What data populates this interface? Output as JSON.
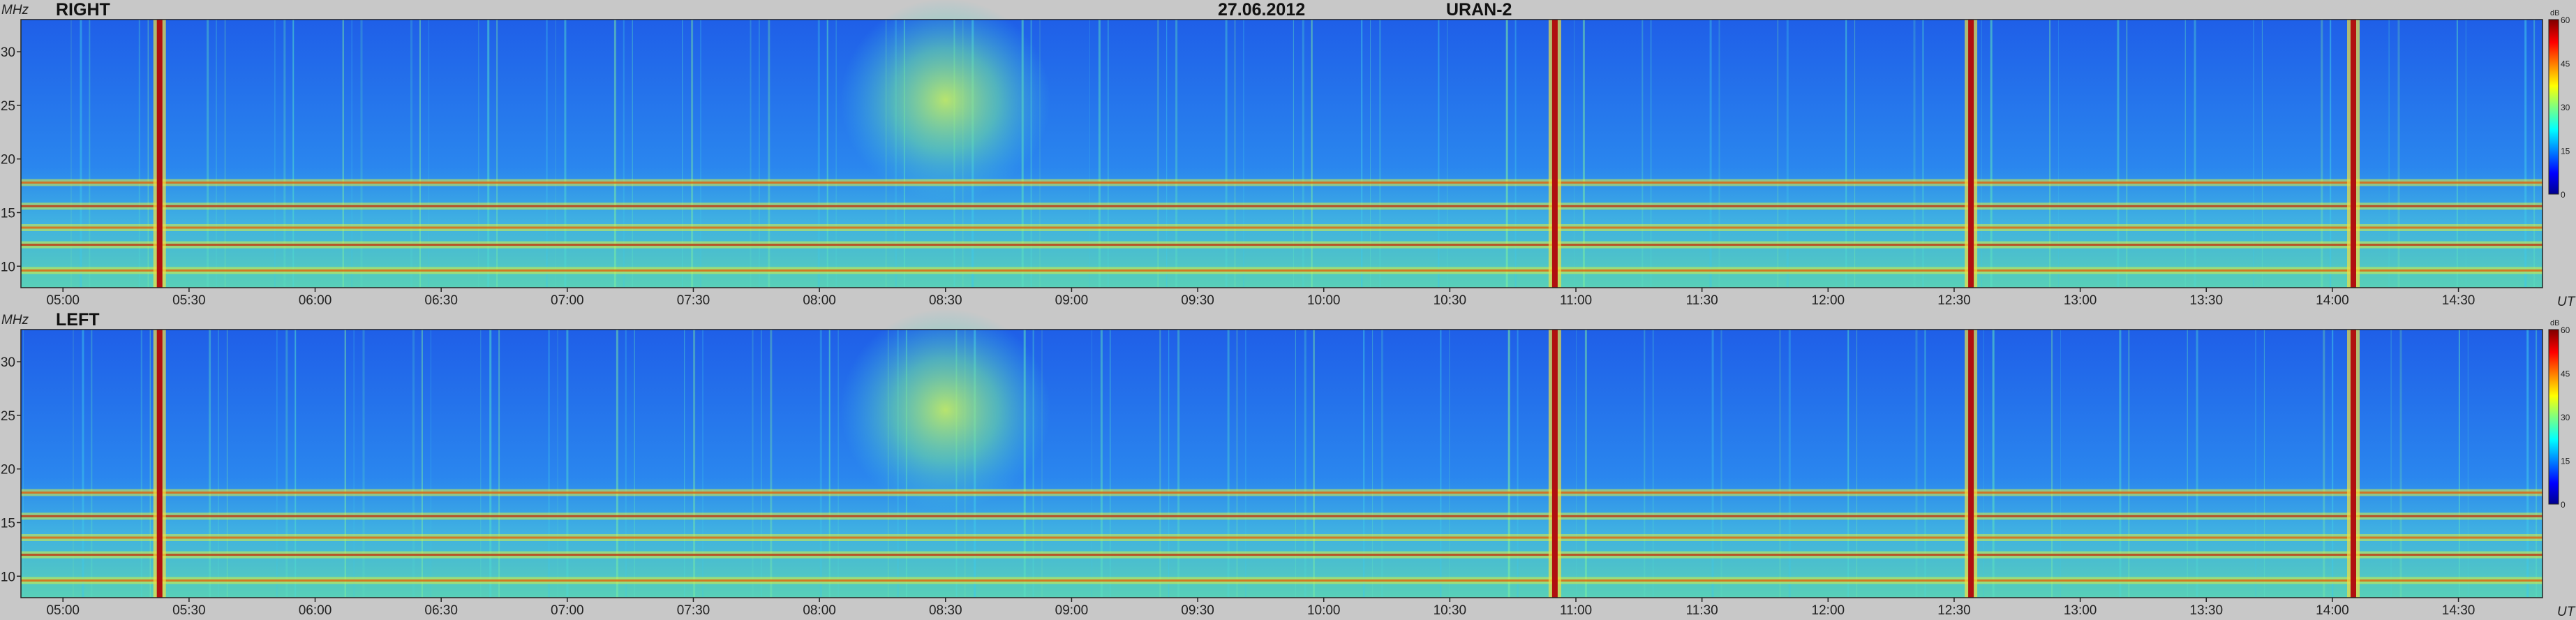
{
  "header": {
    "date": "27.06.2012",
    "instrument": "URAN-2"
  },
  "axes": {
    "y_label": "MHz",
    "x_label": "UT",
    "y_ticks": [
      "10",
      "15",
      "20",
      "25",
      "30"
    ],
    "x_ticks": [
      "05:00",
      "05:30",
      "06:00",
      "06:30",
      "07:00",
      "07:30",
      "08:00",
      "08:30",
      "09:00",
      "09:30",
      "10:00",
      "10:30",
      "11:00",
      "11:30",
      "12:00",
      "12:30",
      "13:00",
      "13:30",
      "14:00",
      "14:30"
    ]
  },
  "colorbar": {
    "unit": "dB",
    "ticks": [
      "60",
      "45",
      "30",
      "15",
      "0"
    ]
  },
  "chart_data": [
    {
      "type": "heatmap",
      "title": "RIGHT",
      "x": {
        "label": "UT",
        "range": [
          "04:50",
          "14:50"
        ]
      },
      "y": {
        "label": "MHz",
        "range": [
          8,
          33
        ]
      },
      "value_range_db": [
        0,
        60
      ],
      "colormap": "jet",
      "features": {
        "horizontal_bands_mhz": [
          9.6,
          12,
          13.6,
          15.6,
          17.8
        ],
        "strong_bursts_ut": [
          "05:23",
          "10:55",
          "12:34",
          "14:05"
        ],
        "diffuse_event": {
          "start": "08:05",
          "end": "08:55",
          "freq_range_mhz": [
            18,
            33
          ]
        }
      }
    },
    {
      "type": "heatmap",
      "title": "LEFT",
      "x": {
        "label": "UT",
        "range": [
          "04:50",
          "14:50"
        ]
      },
      "y": {
        "label": "MHz",
        "range": [
          8,
          33
        ]
      },
      "value_range_db": [
        0,
        60
      ],
      "colormap": "jet",
      "features": {
        "horizontal_bands_mhz": [
          9.6,
          12,
          13.6,
          15.6,
          17.8
        ],
        "strong_bursts_ut": [
          "05:23",
          "10:55",
          "12:34",
          "14:05"
        ],
        "diffuse_event": {
          "start": "08:05",
          "end": "08:55",
          "freq_range_mhz": [
            18,
            33
          ]
        }
      }
    }
  ]
}
